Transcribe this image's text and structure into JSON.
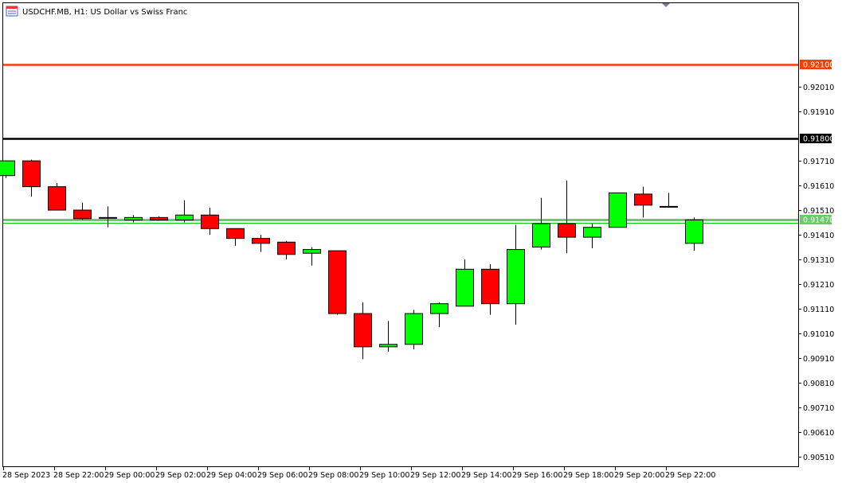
{
  "header": {
    "symbol_title": "USDCHF.MB, H1:  US Dollar vs Swiss Franc",
    "icon": "chart-window-icon"
  },
  "colors": {
    "background": "#ffffff",
    "bull": "#00ff00",
    "bear": "#ff0000",
    "wick": "#000000",
    "level_red": "#ff3d00",
    "level_black": "#000000",
    "level_green": "#66cc66",
    "bid_line": "#00c800"
  },
  "chart_data": {
    "type": "candlestick",
    "title": "USDCHF.MB, H1:  US Dollar vs Swiss Franc",
    "ylim": [
      0.9047,
      0.9235
    ],
    "y_ticks": [
      "0.90510",
      "0.90610",
      "0.90710",
      "0.90810",
      "0.90910",
      "0.91010",
      "0.91110",
      "0.91210",
      "0.91310",
      "0.91410",
      "0.91510",
      "0.91610",
      "0.91710",
      "0.91910",
      "0.92010"
    ],
    "x_labels": [
      "28 Sep 2023",
      "28 Sep 22:00",
      "29 Sep 00:00",
      "29 Sep 02:00",
      "29 Sep 04:00",
      "29 Sep 06:00",
      "29 Sep 08:00",
      "29 Sep 10:00",
      "29 Sep 12:00",
      "29 Sep 14:00",
      "29 Sep 16:00",
      "29 Sep 18:00",
      "29 Sep 20:00",
      "29 Sep 22:00"
    ],
    "candles": [
      {
        "o": 0.9165,
        "h": 0.9171,
        "l": 0.9164,
        "c": 0.9171
      },
      {
        "o": 0.9171,
        "h": 0.91715,
        "l": 0.91565,
        "c": 0.91605
      },
      {
        "o": 0.91605,
        "h": 0.9162,
        "l": 0.9151,
        "c": 0.9151
      },
      {
        "o": 0.9151,
        "h": 0.9154,
        "l": 0.9147,
        "c": 0.91475
      },
      {
        "o": 0.9148,
        "h": 0.91525,
        "l": 0.9144,
        "c": 0.9148
      },
      {
        "o": 0.9147,
        "h": 0.9149,
        "l": 0.9146,
        "c": 0.9148
      },
      {
        "o": 0.9148,
        "h": 0.91485,
        "l": 0.9147,
        "c": 0.9147
      },
      {
        "o": 0.9147,
        "h": 0.9155,
        "l": 0.9146,
        "c": 0.9149
      },
      {
        "o": 0.9149,
        "h": 0.9152,
        "l": 0.9141,
        "c": 0.91435
      },
      {
        "o": 0.91435,
        "h": 0.91435,
        "l": 0.91365,
        "c": 0.91395
      },
      {
        "o": 0.91395,
        "h": 0.9141,
        "l": 0.9134,
        "c": 0.91375
      },
      {
        "o": 0.9138,
        "h": 0.91385,
        "l": 0.9131,
        "c": 0.9133
      },
      {
        "o": 0.91335,
        "h": 0.9136,
        "l": 0.91285,
        "c": 0.9135
      },
      {
        "o": 0.91345,
        "h": 0.91345,
        "l": 0.91085,
        "c": 0.9109
      },
      {
        "o": 0.9109,
        "h": 0.91135,
        "l": 0.90905,
        "c": 0.90955
      },
      {
        "o": 0.90955,
        "h": 0.9106,
        "l": 0.90935,
        "c": 0.90965
      },
      {
        "o": 0.90965,
        "h": 0.91105,
        "l": 0.90945,
        "c": 0.9109
      },
      {
        "o": 0.9109,
        "h": 0.91135,
        "l": 0.91035,
        "c": 0.9113
      },
      {
        "o": 0.9112,
        "h": 0.9131,
        "l": 0.9112,
        "c": 0.9127
      },
      {
        "o": 0.9127,
        "h": 0.9129,
        "l": 0.91085,
        "c": 0.9113
      },
      {
        "o": 0.9113,
        "h": 0.9145,
        "l": 0.91045,
        "c": 0.9135
      },
      {
        "o": 0.9136,
        "h": 0.9156,
        "l": 0.9135,
        "c": 0.91455
      },
      {
        "o": 0.91455,
        "h": 0.9163,
        "l": 0.91335,
        "c": 0.914
      },
      {
        "o": 0.914,
        "h": 0.91455,
        "l": 0.91355,
        "c": 0.9144
      },
      {
        "o": 0.9144,
        "h": 0.9158,
        "l": 0.9144,
        "c": 0.9158
      },
      {
        "o": 0.91575,
        "h": 0.91605,
        "l": 0.9148,
        "c": 0.9153
      },
      {
        "o": 0.91525,
        "h": 0.9158,
        "l": 0.9152,
        "c": 0.91525
      },
      {
        "o": 0.91375,
        "h": 0.9148,
        "l": 0.91345,
        "c": 0.9147
      }
    ],
    "levels": [
      {
        "price": 0.921,
        "label": "0.92100",
        "color": "#ff3d00",
        "text_color": "#ffffff"
      },
      {
        "price": 0.918,
        "label": "0.91800",
        "color": "#000000",
        "text_color": "#ffffff"
      },
      {
        "price": 0.9147,
        "label": "0.91470",
        "color": "#66cc66",
        "text_color": "#ffffff"
      }
    ],
    "bid_price": 0.9146,
    "grid": false,
    "legend": "none"
  }
}
